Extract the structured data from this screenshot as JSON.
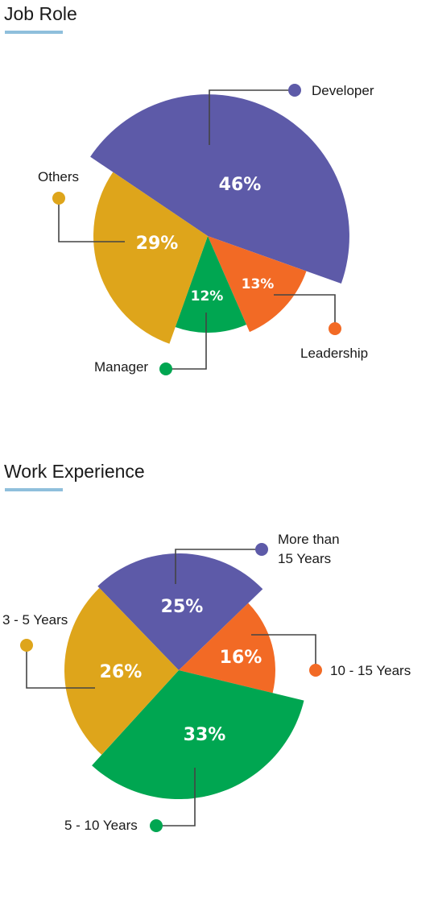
{
  "chart_data": [
    {
      "type": "pie",
      "title": "Job Role",
      "slices": [
        {
          "name": "Developer",
          "value": 46,
          "label": "46%",
          "color": "#5d5aa8"
        },
        {
          "name": "Leadership",
          "value": 13,
          "label": "13%",
          "color": "#f26a25"
        },
        {
          "name": "Manager",
          "value": 12,
          "label": "12%",
          "color": "#00a651"
        },
        {
          "name": "Others",
          "value": 29,
          "label": "29%",
          "color": "#dea51b"
        }
      ]
    },
    {
      "type": "pie",
      "title": "Work Experience",
      "slices": [
        {
          "name": "More than 15 Years",
          "lines": [
            "More than",
            "15 Years"
          ],
          "value": 25,
          "label": "25%",
          "color": "#5d5aa8"
        },
        {
          "name": "10 - 15 Years",
          "lines": [
            "10 - 15 Years"
          ],
          "value": 16,
          "label": "16%",
          "color": "#f26a25"
        },
        {
          "name": "5 - 10 Years",
          "lines": [
            "5 - 10 Years"
          ],
          "value": 33,
          "label": "33%",
          "color": "#00a651"
        },
        {
          "name": "3 - 5 Years",
          "lines": [
            "3 - 5 Years"
          ],
          "value": 26,
          "label": "26%",
          "color": "#dea51b"
        }
      ]
    }
  ]
}
